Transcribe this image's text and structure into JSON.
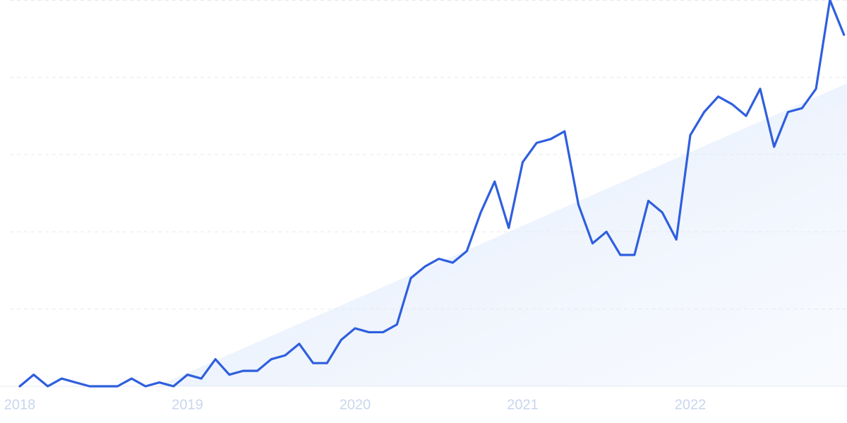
{
  "chart_data": {
    "type": "line",
    "x": [
      2018,
      2018.083,
      2018.167,
      2018.25,
      2018.333,
      2018.417,
      2018.5,
      2018.583,
      2018.667,
      2018.75,
      2018.833,
      2018.917,
      2019,
      2019.083,
      2019.167,
      2019.25,
      2019.333,
      2019.417,
      2019.5,
      2019.583,
      2019.667,
      2019.75,
      2019.833,
      2019.917,
      2020,
      2020.083,
      2020.167,
      2020.25,
      2020.333,
      2020.417,
      2020.5,
      2020.583,
      2020.667,
      2020.75,
      2020.833,
      2020.917,
      2021,
      2021.083,
      2021.167,
      2021.25,
      2021.333,
      2021.417,
      2021.5,
      2021.583,
      2021.667,
      2021.75,
      2021.833,
      2021.917,
      2022,
      2022.083,
      2022.167,
      2022.25,
      2022.333,
      2022.417,
      2022.5,
      2022.583,
      2022.667,
      2022.75,
      2022.833,
      2022.917
    ],
    "values": [
      0,
      3,
      0,
      2,
      1,
      0,
      0,
      0,
      2,
      0,
      1,
      0,
      3,
      2,
      7,
      3,
      4,
      4,
      7,
      8,
      11,
      6,
      6,
      12,
      15,
      14,
      14,
      16,
      28,
      31,
      33,
      32,
      35,
      45,
      53,
      41,
      58,
      63,
      64,
      66,
      47,
      37,
      40,
      34,
      34,
      48,
      45,
      38,
      65,
      71,
      75,
      73,
      70,
      77,
      62,
      71,
      72,
      77,
      100,
      91
    ],
    "color": "#2f5fde",
    "xlim": [
      2017.882,
      2022.935
    ],
    "xticks": [
      2018,
      2019,
      2020,
      2021,
      2022
    ],
    "ylim": [
      0,
      100
    ],
    "yticks": [
      0,
      20,
      40,
      60,
      80,
      100
    ],
    "ytick_labels": false,
    "grid": true
  }
}
